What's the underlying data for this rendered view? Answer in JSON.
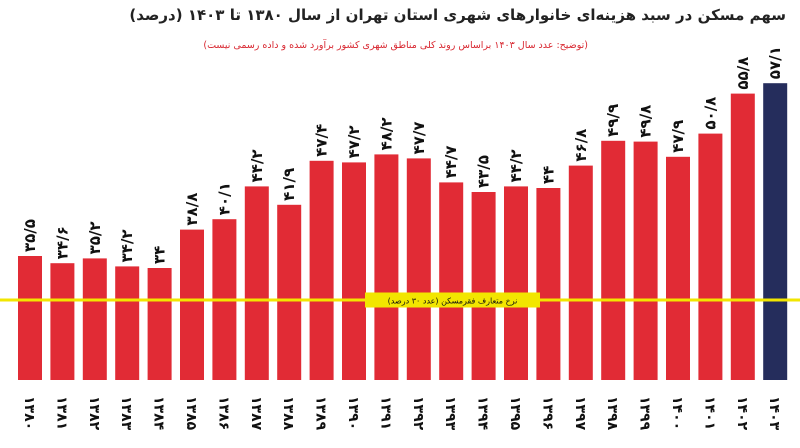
{
  "chart_data": {
    "type": "bar",
    "title": "سهم مسکن در سبد هزینه‌ای خانوارهای شهری استان تهران از سال ۱۳۸۰ تا ۱۴۰۳ (درصد)",
    "subtitle": "(توضیح: عدد سال ۱۴۰۳ براساس روند کلی مناطق شهری کشور برآورد شده و داده رسمی نیست)",
    "categories": [
      "۱۳۸۰",
      "۱۳۸۱",
      "۱۳۸۲",
      "۱۳۸۳",
      "۱۳۸۴",
      "۱۳۸۵",
      "۱۳۸۶",
      "۱۳۸۷",
      "۱۳۸۸",
      "۱۳۸۹",
      "۱۳۹۰",
      "۱۳۹۱",
      "۱۳۹۲",
      "۱۳۹۳",
      "۱۳۹۴",
      "۱۳۹۵",
      "۱۳۹۶",
      "۱۳۹۷",
      "۱۳۹۸",
      "۱۳۹۹",
      "۱۴۰۰",
      "۱۴۰۱",
      "۱۴۰۲",
      "۱۴۰۳"
    ],
    "values": [
      35.5,
      34.6,
      35.2,
      34.2,
      34,
      38.8,
      40.1,
      44.2,
      41.9,
      47.4,
      47.2,
      48.2,
      47.7,
      44.7,
      43.5,
      44.2,
      44,
      46.8,
      49.9,
      49.8,
      47.9,
      50.8,
      55.8,
      57.1
    ],
    "value_labels": [
      "۳۵/۵",
      "۳۴/۶",
      "۳۵/۲",
      "۳۴/۲",
      "۳۴",
      "۳۸/۸",
      "۴۰/۱",
      "۴۴/۲",
      "۴۱/۹",
      "۴۷/۴",
      "۴۷/۲",
      "۴۸/۲",
      "۴۷/۷",
      "۴۴/۷",
      "۴۳/۵",
      "۴۴/۲",
      "۴۴",
      "۴۶/۸",
      "۴۹/۹",
      "۴۹/۸",
      "۴۷/۹",
      "۵۰/۸",
      "۵۵/۸",
      "۵۷/۱"
    ],
    "colors": {
      "bar": "#e12b35",
      "highlight_bar": "#252d5c",
      "reference_line": "#f2e600"
    },
    "highlight_index": 23,
    "reference_line": {
      "value": 30,
      "label": "نرخ متعارف فقرمسکن (عدد ۳۰ درصد)"
    },
    "y_min": 20,
    "y_max": 60
  }
}
